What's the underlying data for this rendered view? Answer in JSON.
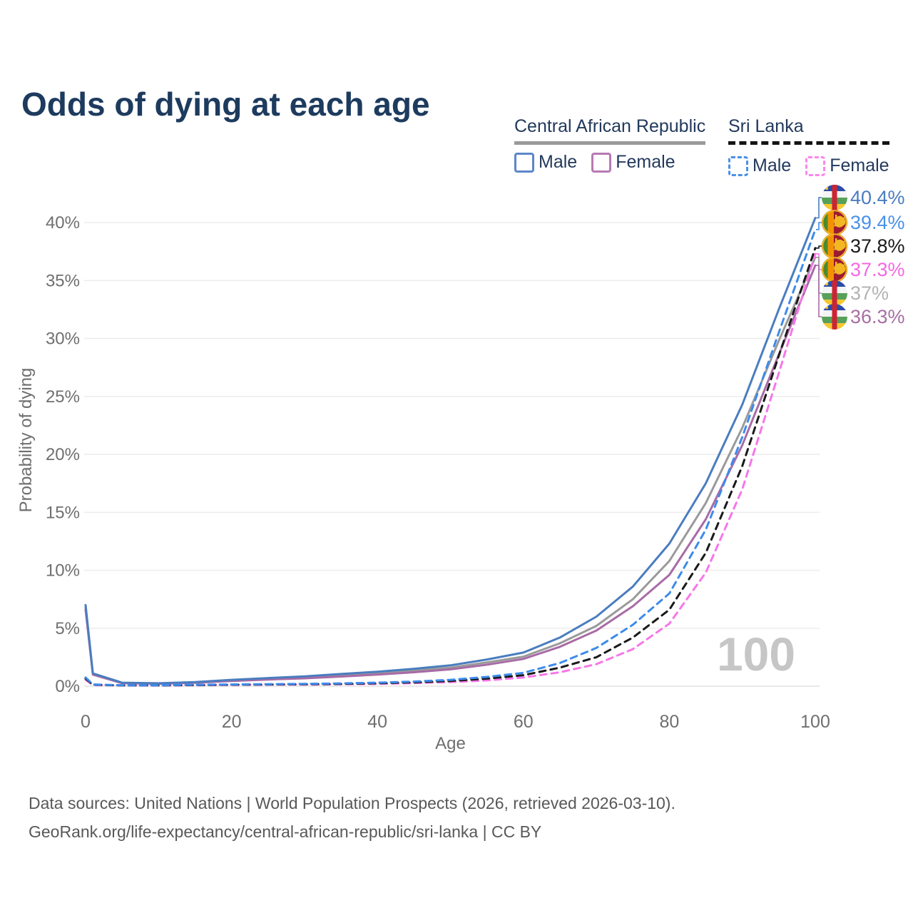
{
  "title": "Odds of dying at each age",
  "watermark_age": "100",
  "legend": {
    "groups": [
      {
        "label": "Central African Republic",
        "line_style": "solid",
        "underline_color": "#9a9a9a",
        "items": [
          {
            "label": "Male",
            "color": "#4a7dbf",
            "dashed": false
          },
          {
            "label": "Female",
            "color": "#b077ae",
            "dashed": false
          }
        ]
      },
      {
        "label": "Sri Lanka",
        "line_style": "dashed",
        "underline_color": "#141414",
        "items": [
          {
            "label": "Male",
            "color": "#4a90e8",
            "dashed": true
          },
          {
            "label": "Female",
            "color": "#fb86ec",
            "dashed": true
          }
        ]
      }
    ]
  },
  "chart_data": {
    "type": "line",
    "title": "Odds of dying at each age",
    "xlabel": "Age",
    "ylabel": "Probability of dying",
    "xlim": [
      0,
      100
    ],
    "ylim_percent": [
      0,
      43
    ],
    "x_ticks": [
      0,
      20,
      40,
      60,
      80,
      100
    ],
    "y_ticks_percent": [
      0,
      5,
      10,
      15,
      20,
      25,
      30,
      35,
      40
    ],
    "grid": "horizontal",
    "legend_position": "top-right",
    "x": [
      0,
      1,
      5,
      10,
      15,
      20,
      25,
      30,
      35,
      40,
      45,
      50,
      55,
      60,
      65,
      70,
      75,
      80,
      85,
      90,
      95,
      100
    ],
    "series": [
      {
        "name": "Central African Republic Both sexes",
        "country": "Central African Republic",
        "flag": "caf",
        "color": "#9a9a9a",
        "dashed": false,
        "end_label": "37%",
        "label_color": "#b3b3b3",
        "values": [
          6.8,
          1.05,
          0.28,
          0.23,
          0.32,
          0.5,
          0.63,
          0.75,
          0.92,
          1.1,
          1.35,
          1.6,
          2.05,
          2.55,
          3.7,
          5.2,
          7.5,
          10.8,
          15.8,
          22.3,
          29.8,
          37.0
        ]
      },
      {
        "name": "Central African Republic Female",
        "country": "Central African Republic",
        "flag": "caf",
        "color": "#a86ba6",
        "dashed": false,
        "end_label": "36.3%",
        "label_color": "#a76fa3",
        "values": [
          6.6,
          1.0,
          0.26,
          0.21,
          0.29,
          0.45,
          0.57,
          0.68,
          0.83,
          1.0,
          1.2,
          1.45,
          1.85,
          2.35,
          3.4,
          4.8,
          6.9,
          9.6,
          14.4,
          20.8,
          28.6,
          36.3
        ]
      },
      {
        "name": "Central African Republic Male",
        "country": "Central African Republic",
        "flag": "caf",
        "color": "#4a7dbf",
        "dashed": false,
        "end_label": "40.4%",
        "label_color": "#4a7dbf",
        "values": [
          7.0,
          1.1,
          0.3,
          0.25,
          0.35,
          0.55,
          0.7,
          0.85,
          1.05,
          1.25,
          1.5,
          1.8,
          2.3,
          2.9,
          4.2,
          6.0,
          8.6,
          12.3,
          17.5,
          24.3,
          32.5,
          40.4
        ]
      },
      {
        "name": "Sri Lanka Female",
        "country": "Sri Lanka",
        "flag": "lka",
        "color": "#f776e8",
        "dashed": true,
        "end_label": "37.3%",
        "label_color": "#f468e4",
        "values": [
          0.55,
          0.11,
          0.06,
          0.06,
          0.08,
          0.11,
          0.13,
          0.14,
          0.17,
          0.2,
          0.27,
          0.35,
          0.5,
          0.75,
          1.2,
          1.9,
          3.2,
          5.4,
          9.8,
          17.0,
          27.0,
          37.3
        ]
      },
      {
        "name": "Sri Lanka Both sexes",
        "country": "Sri Lanka",
        "flag": "lka",
        "color": "#1a1a1a",
        "dashed": true,
        "end_label": "37.8%",
        "label_color": "#1a1a1a",
        "values": [
          0.65,
          0.13,
          0.07,
          0.07,
          0.1,
          0.13,
          0.15,
          0.17,
          0.2,
          0.25,
          0.33,
          0.45,
          0.65,
          0.95,
          1.6,
          2.5,
          4.2,
          6.6,
          11.5,
          19.0,
          28.5,
          37.8
        ]
      },
      {
        "name": "Sri Lanka Male",
        "country": "Sri Lanka",
        "flag": "lka",
        "color": "#3d8bea",
        "dashed": true,
        "end_label": "39.4%",
        "label_color": "#4a90e8",
        "values": [
          0.75,
          0.15,
          0.08,
          0.08,
          0.12,
          0.15,
          0.17,
          0.2,
          0.24,
          0.3,
          0.4,
          0.55,
          0.8,
          1.15,
          2.0,
          3.3,
          5.3,
          8.0,
          13.5,
          21.5,
          30.5,
          39.4
        ]
      }
    ]
  },
  "axes": {
    "y_tick_labels": [
      "0%",
      "5%",
      "10%",
      "15%",
      "20%",
      "25%",
      "30%",
      "35%",
      "40%"
    ],
    "x_tick_labels": [
      "0",
      "20",
      "40",
      "60",
      "80",
      "100"
    ]
  },
  "footer": {
    "line1": "Data sources: United Nations | World Population Prospects (2026, retrieved 2026-03-10).",
    "line2": "GeoRank.org/life-expectancy/central-african-republic/sri-lanka | CC BY"
  }
}
